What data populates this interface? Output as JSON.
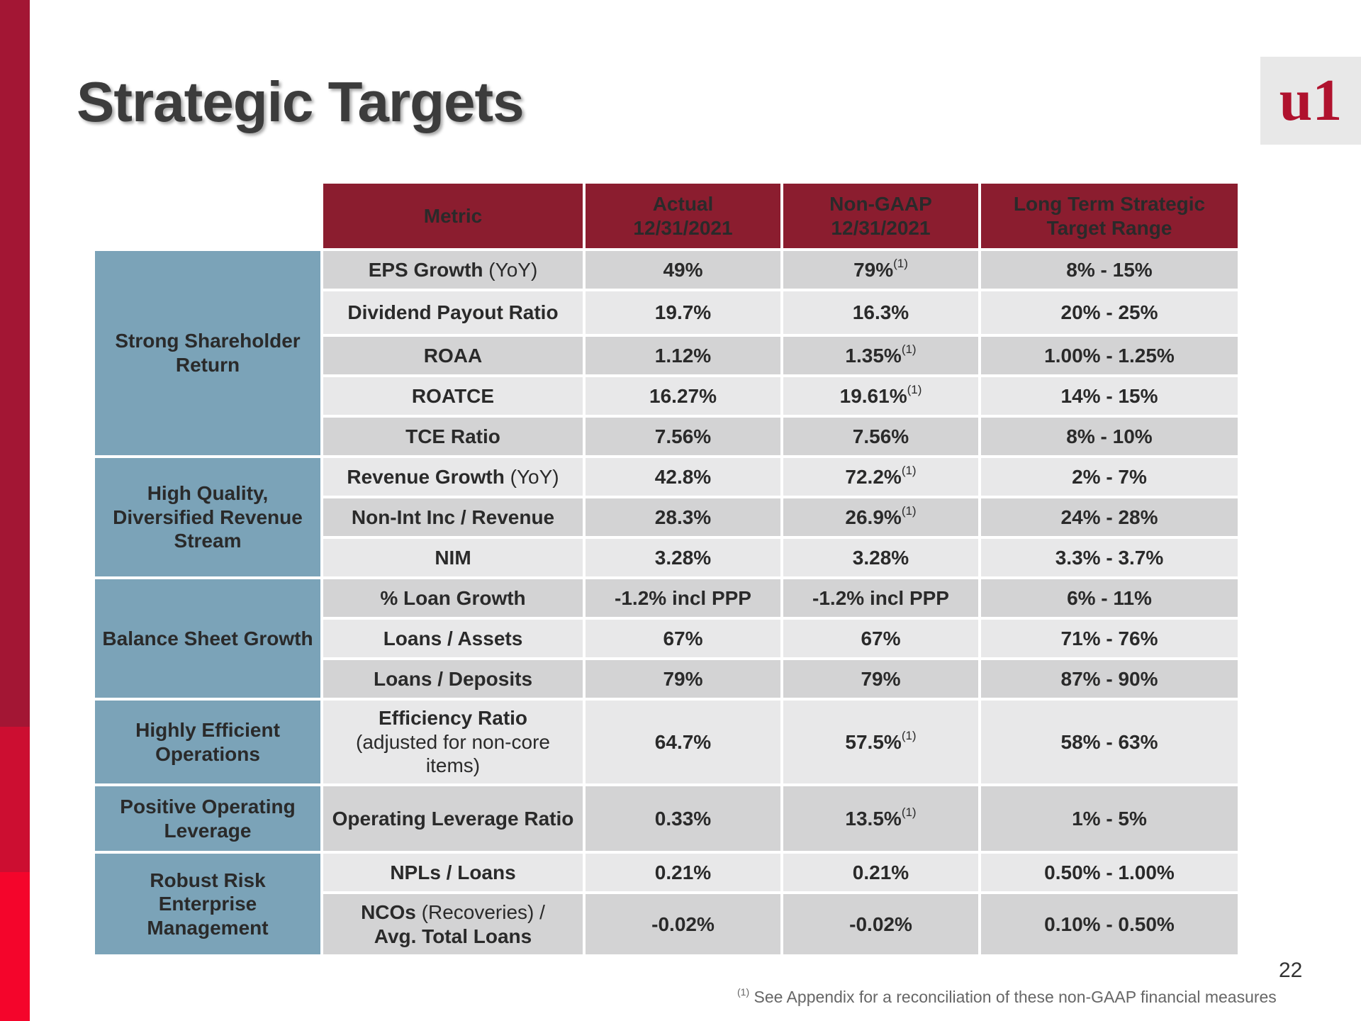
{
  "title": "Strategic Targets",
  "logo_text": "u1",
  "colors": {
    "sidebar_dark": "#a31634",
    "sidebar_mid": "#cc0e31",
    "sidebar_bright": "#f4052b",
    "header_bg": "#8b1d2f",
    "category_bg": "#7ba3b8",
    "row_dark": "#d3d3d4",
    "row_light": "#e8e8e9"
  },
  "table": {
    "headers": {
      "metric": "Metric",
      "actual_1": "Actual",
      "actual_2": "12/31/2021",
      "nongaap_1": "Non-GAAP",
      "nongaap_2": "12/31/2021",
      "target_1": "Long Term Strategic",
      "target_2": "Target Range"
    },
    "categories": {
      "c1": "Strong Shareholder Return",
      "c2": "High Quality, Diversified Revenue Stream",
      "c3": "Balance Sheet Growth",
      "c4": "Highly Efficient Operations",
      "c5": "Positive Operating Leverage",
      "c6": "Robust Risk Enterprise Management"
    },
    "rows": {
      "r1": {
        "metric": "EPS Growth",
        "metric_note": "(YoY)",
        "actual": "49%",
        "nongaap": "79%",
        "nongaap_sup": "(1)",
        "target": "8% - 15%"
      },
      "r2": {
        "metric": "Dividend Payout Ratio",
        "actual": "19.7%",
        "nongaap": "16.3%",
        "target": "20% - 25%"
      },
      "r3": {
        "metric": "ROAA",
        "actual": "1.12%",
        "nongaap": "1.35%",
        "nongaap_sup": "(1)",
        "target": "1.00% - 1.25%"
      },
      "r4": {
        "metric": "ROATCE",
        "actual": "16.27%",
        "nongaap": "19.61%",
        "nongaap_sup": "(1)",
        "target": "14% - 15%"
      },
      "r5": {
        "metric": "TCE Ratio",
        "actual": "7.56%",
        "nongaap": "7.56%",
        "target": "8% - 10%"
      },
      "r6": {
        "metric": "Revenue Growth",
        "metric_note": "(YoY)",
        "actual": "42.8%",
        "nongaap": "72.2%",
        "nongaap_sup": "(1)",
        "target": "2% - 7%"
      },
      "r7": {
        "metric": "Non-Int Inc / Revenue",
        "actual": "28.3%",
        "nongaap": "26.9%",
        "nongaap_sup": "(1)",
        "target": "24% - 28%"
      },
      "r8": {
        "metric": "NIM",
        "actual": "3.28%",
        "nongaap": "3.28%",
        "target": "3.3% - 3.7%"
      },
      "r9": {
        "metric": "% Loan Growth",
        "actual": "-1.2% incl PPP",
        "nongaap": "-1.2% incl PPP",
        "target": "6% - 11%"
      },
      "r10": {
        "metric": "Loans / Assets",
        "actual": "67%",
        "nongaap": "67%",
        "target": "71% - 76%"
      },
      "r11": {
        "metric": "Loans / Deposits",
        "actual": "79%",
        "nongaap": "79%",
        "target": "87% - 90%"
      },
      "r12": {
        "metric": "Efficiency Ratio",
        "metric_note": "(adjusted for non-core items)",
        "actual": "64.7%",
        "nongaap": "57.5%",
        "nongaap_sup": "(1)",
        "target": "58% - 63%"
      },
      "r13": {
        "metric": "Operating Leverage Ratio",
        "actual": "0.33%",
        "nongaap": "13.5%",
        "nongaap_sup": "(1)",
        "target": "1% - 5%"
      },
      "r14": {
        "metric": "NPLs / Loans",
        "actual": "0.21%",
        "nongaap": "0.21%",
        "target": "0.50% - 1.00%"
      },
      "r15": {
        "metric": "NCOs",
        "metric_note": "(Recoveries) /",
        "metric_line2": "Avg. Total Loans",
        "actual": "-0.02%",
        "nongaap": "-0.02%",
        "target": "0.10% - 0.50%"
      }
    }
  },
  "page_number": "22",
  "footnote": {
    "marker": "(1)",
    "text": "See Appendix for a reconciliation of these non-GAAP financial measures"
  }
}
